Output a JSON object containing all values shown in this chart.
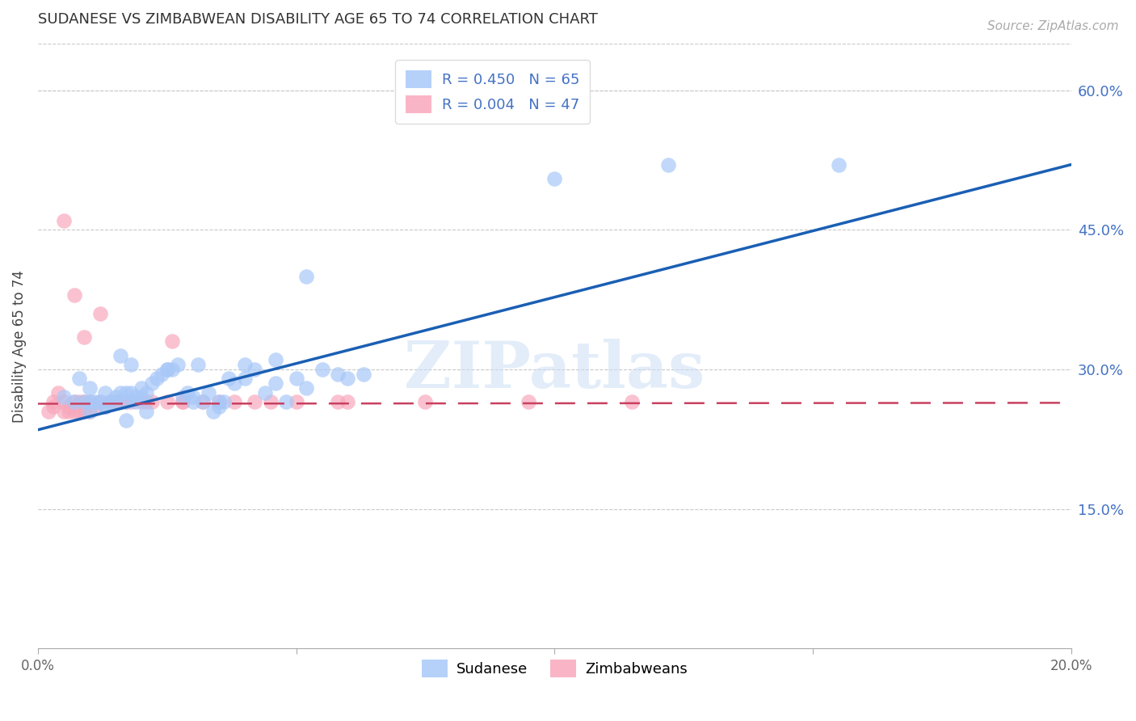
{
  "title": "SUDANESE VS ZIMBABWEAN DISABILITY AGE 65 TO 74 CORRELATION CHART",
  "source": "Source: ZipAtlas.com",
  "ylabel": "Disability Age 65 to 74",
  "xlabel": "",
  "xlim": [
    0.0,
    0.2
  ],
  "ylim": [
    0.0,
    0.65
  ],
  "xticks": [
    0.0,
    0.05,
    0.1,
    0.15,
    0.2
  ],
  "yticks": [
    0.15,
    0.3,
    0.45,
    0.6
  ],
  "ytick_labels": [
    "15.0%",
    "30.0%",
    "45.0%",
    "60.0%"
  ],
  "xtick_labels": [
    "0.0%",
    "",
    "",
    "",
    "20.0%"
  ],
  "blue_color": "#a8c8f8",
  "pink_color": "#f8a8bc",
  "line_blue_color": "#1a5fb4",
  "line_pink_color": "#c84060",
  "watermark_text": "ZIPatlas",
  "sudanese_x": [
    0.005,
    0.007,
    0.008,
    0.009,
    0.01,
    0.01,
    0.011,
    0.012,
    0.013,
    0.013,
    0.014,
    0.015,
    0.015,
    0.016,
    0.016,
    0.017,
    0.017,
    0.018,
    0.018,
    0.019,
    0.019,
    0.02,
    0.02,
    0.021,
    0.022,
    0.023,
    0.024,
    0.025,
    0.026,
    0.027,
    0.028,
    0.029,
    0.03,
    0.031,
    0.032,
    0.033,
    0.034,
    0.035,
    0.036,
    0.037,
    0.038,
    0.04,
    0.042,
    0.044,
    0.046,
    0.048,
    0.05,
    0.052,
    0.055,
    0.058,
    0.06,
    0.063,
    0.01,
    0.013,
    0.017,
    0.021,
    0.025,
    0.03,
    0.035,
    0.04,
    0.046,
    0.052,
    0.1,
    0.122,
    0.155
  ],
  "sudanese_y": [
    0.27,
    0.265,
    0.29,
    0.265,
    0.28,
    0.265,
    0.265,
    0.265,
    0.275,
    0.26,
    0.265,
    0.27,
    0.265,
    0.275,
    0.315,
    0.275,
    0.265,
    0.275,
    0.305,
    0.27,
    0.265,
    0.28,
    0.27,
    0.275,
    0.285,
    0.29,
    0.295,
    0.3,
    0.3,
    0.305,
    0.27,
    0.275,
    0.27,
    0.305,
    0.265,
    0.275,
    0.255,
    0.26,
    0.265,
    0.29,
    0.285,
    0.29,
    0.3,
    0.275,
    0.285,
    0.265,
    0.29,
    0.28,
    0.3,
    0.295,
    0.29,
    0.295,
    0.255,
    0.26,
    0.245,
    0.255,
    0.3,
    0.265,
    0.265,
    0.305,
    0.31,
    0.4,
    0.505,
    0.52,
    0.52
  ],
  "zimbabwean_x": [
    0.002,
    0.003,
    0.003,
    0.004,
    0.005,
    0.005,
    0.006,
    0.006,
    0.007,
    0.007,
    0.008,
    0.008,
    0.009,
    0.009,
    0.01,
    0.01,
    0.011,
    0.012,
    0.013,
    0.014,
    0.015,
    0.016,
    0.017,
    0.018,
    0.02,
    0.022,
    0.025,
    0.028,
    0.032,
    0.038,
    0.042,
    0.05,
    0.06,
    0.005,
    0.007,
    0.009,
    0.012,
    0.016,
    0.021,
    0.028,
    0.035,
    0.045,
    0.058,
    0.075,
    0.095,
    0.115,
    0.026
  ],
  "zimbabwean_y": [
    0.255,
    0.26,
    0.265,
    0.275,
    0.265,
    0.255,
    0.26,
    0.255,
    0.265,
    0.255,
    0.255,
    0.265,
    0.255,
    0.265,
    0.265,
    0.255,
    0.26,
    0.265,
    0.26,
    0.265,
    0.265,
    0.265,
    0.265,
    0.265,
    0.265,
    0.265,
    0.265,
    0.265,
    0.265,
    0.265,
    0.265,
    0.265,
    0.265,
    0.46,
    0.38,
    0.335,
    0.36,
    0.265,
    0.265,
    0.265,
    0.265,
    0.265,
    0.265,
    0.265,
    0.265,
    0.265,
    0.33
  ],
  "blue_line_x0": 0.0,
  "blue_line_y0": 0.235,
  "blue_line_x1": 0.2,
  "blue_line_y1": 0.52,
  "pink_line_x0": 0.0,
  "pink_line_y0": 0.263,
  "pink_line_x1": 0.2,
  "pink_line_y1": 0.264
}
